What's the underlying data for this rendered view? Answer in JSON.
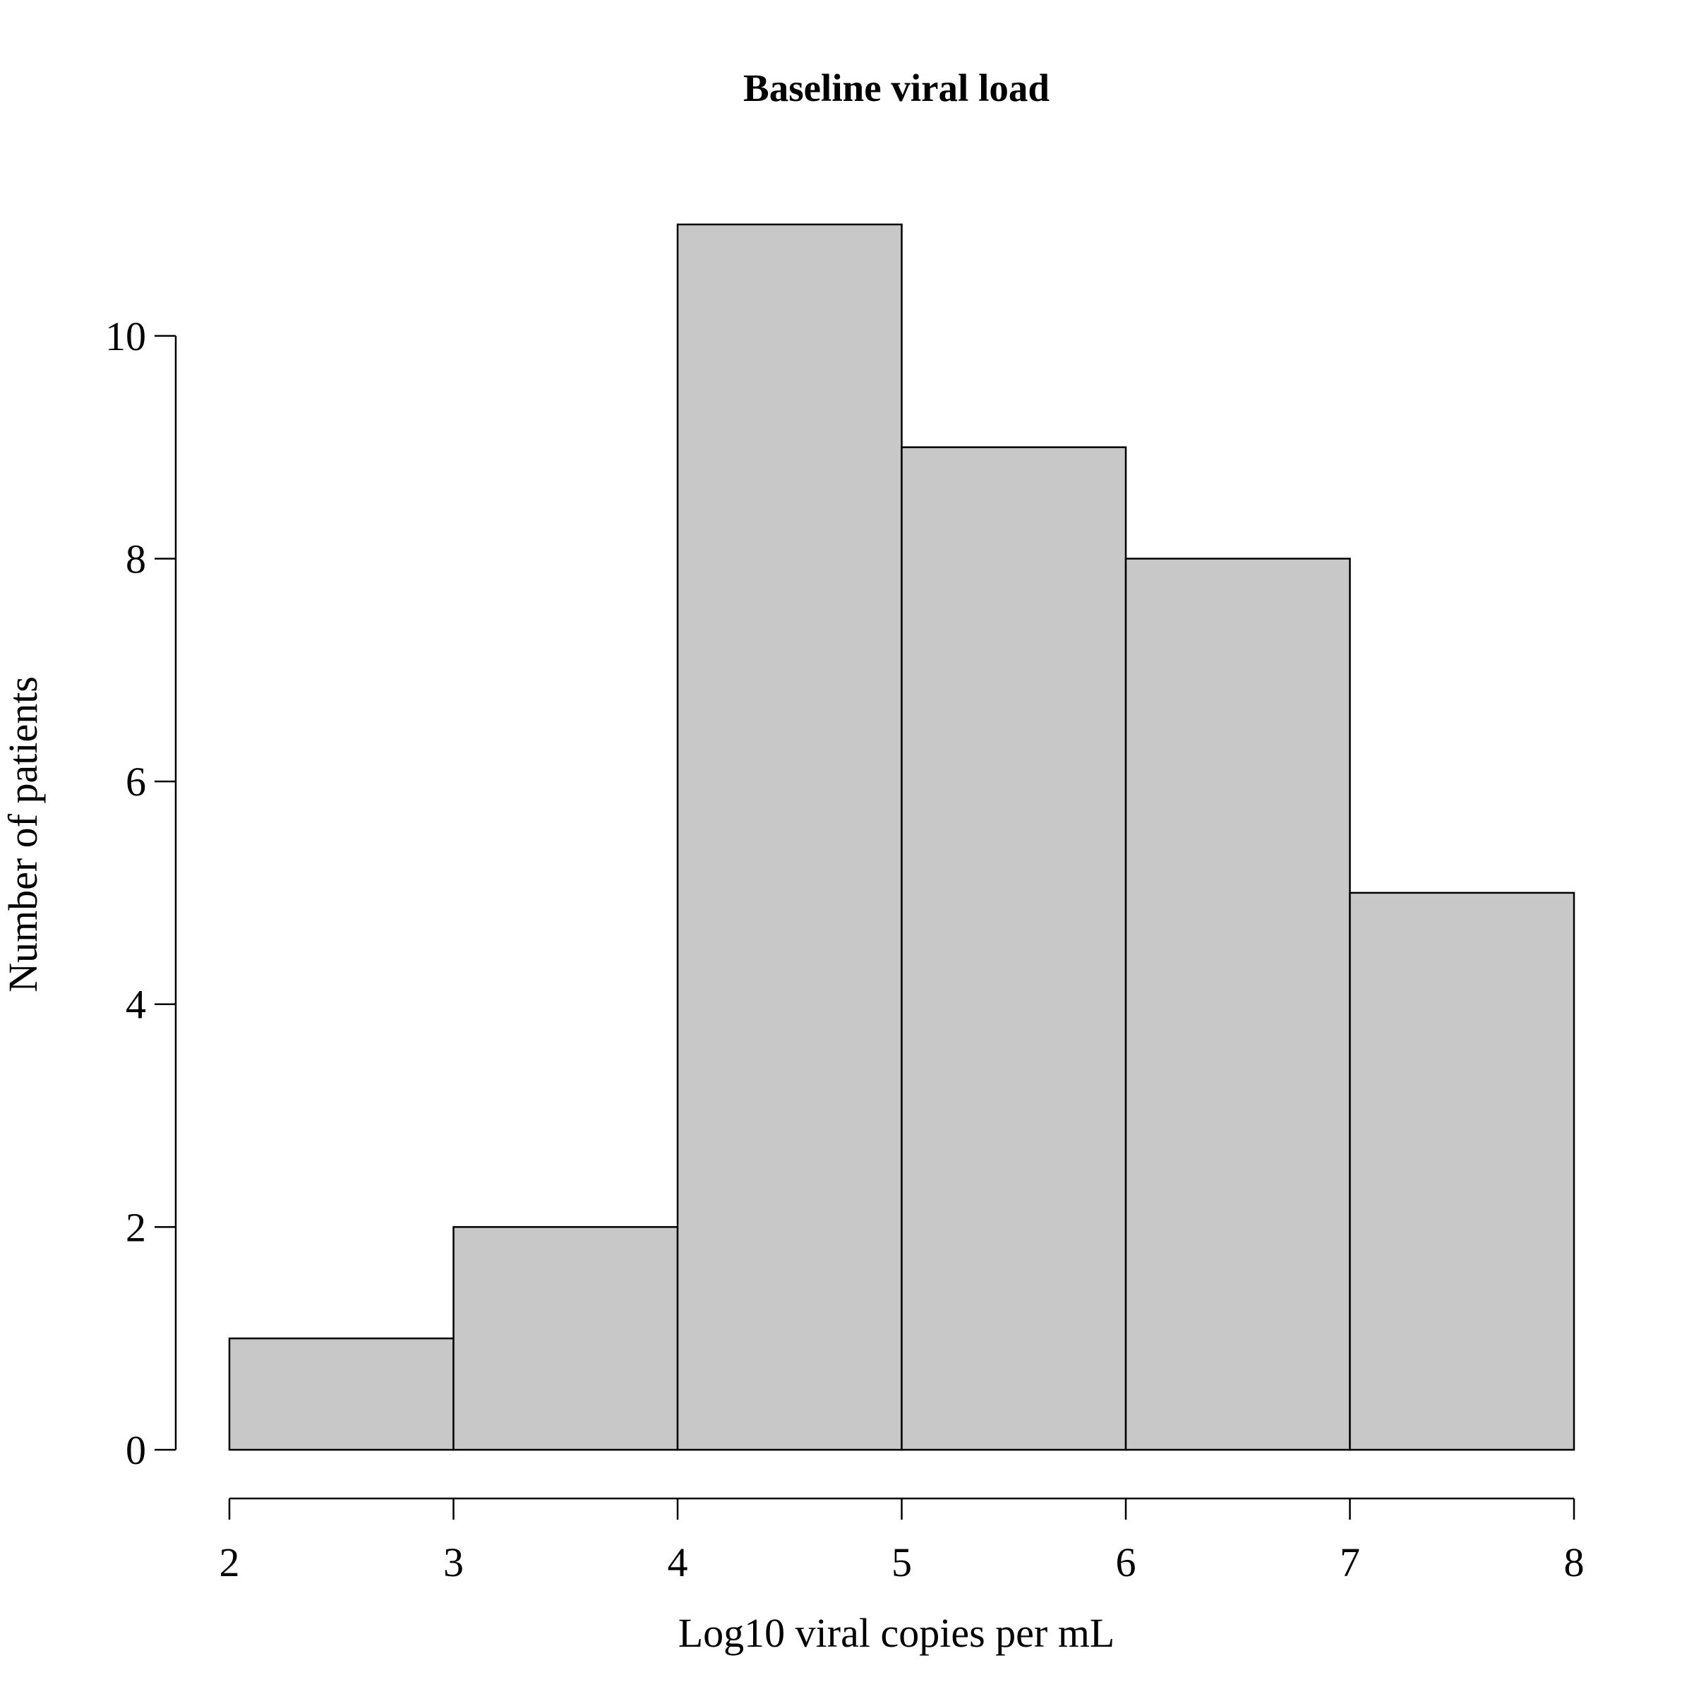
{
  "chart_data": {
    "type": "bar",
    "histogram": true,
    "title": "Baseline viral load",
    "xlabel": "Log10 viral copies per mL",
    "ylabel": "Number of patients",
    "bins": [
      {
        "from": 2,
        "to": 3,
        "count": 1
      },
      {
        "from": 3,
        "to": 4,
        "count": 2
      },
      {
        "from": 4,
        "to": 5,
        "count": 11
      },
      {
        "from": 5,
        "to": 6,
        "count": 9
      },
      {
        "from": 6,
        "to": 7,
        "count": 8
      },
      {
        "from": 7,
        "to": 8,
        "count": 5
      }
    ],
    "xlim": [
      2,
      8
    ],
    "ylim": [
      0,
      11
    ],
    "x_ticks": [
      2,
      3,
      4,
      5,
      6,
      7,
      8
    ],
    "y_ticks": [
      0,
      2,
      4,
      6,
      8,
      10
    ],
    "grid": false,
    "legend": "none"
  }
}
